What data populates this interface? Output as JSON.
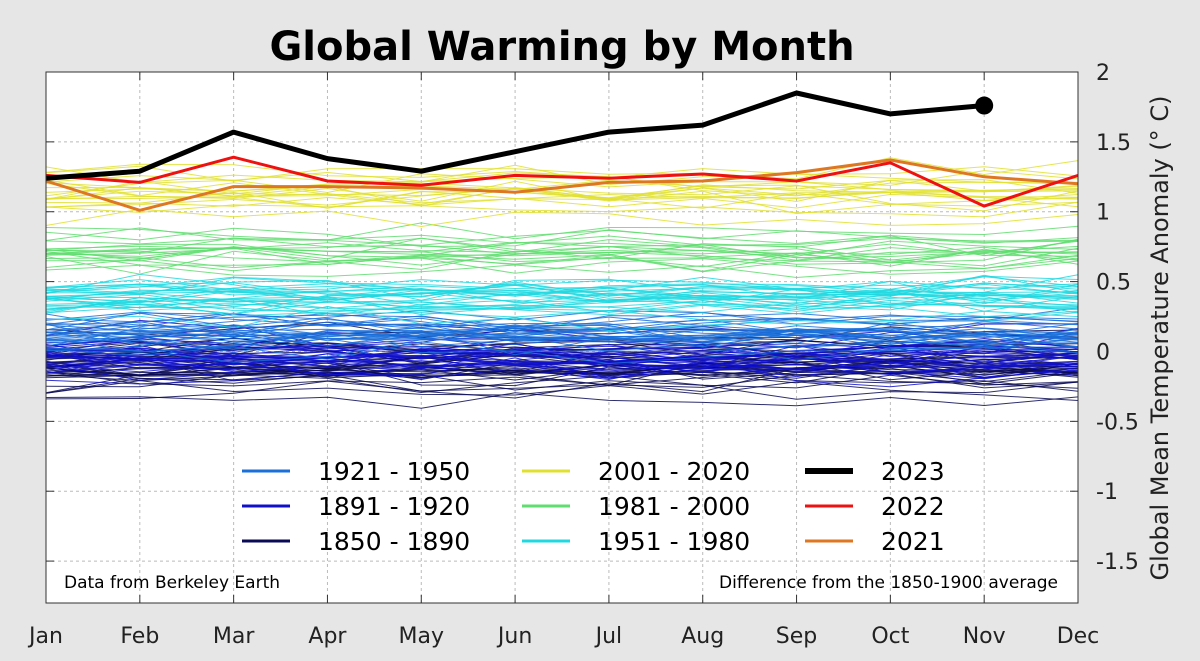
{
  "chart_data": {
    "type": "line",
    "title": "Global Warming by Month",
    "xlabel": "",
    "ylabel": "Global Mean Temperature Anomaly (° C)",
    "categories": [
      "Jan",
      "Feb",
      "Mar",
      "Apr",
      "May",
      "Jun",
      "Jul",
      "Aug",
      "Sep",
      "Oct",
      "Nov",
      "Dec"
    ],
    "ylim": [
      -1.8,
      2.0
    ],
    "yticks": [
      2,
      1.5,
      1,
      0.5,
      0,
      -0.5,
      -1,
      -1.5
    ],
    "ytick_labels": [
      "2",
      "1.5",
      "1",
      "0.5",
      "0",
      "-0.5",
      "-1",
      "-1.5"
    ],
    "grid": true,
    "y_axis_side": "right",
    "annotations": {
      "left": "Data from Berkeley Earth",
      "right": "Difference from the 1850-1900 average"
    },
    "legend": [
      {
        "label": "1921 - 1950",
        "color": "#1a6fd8",
        "width": 3
      },
      {
        "label": "1891 - 1920",
        "color": "#1010cc",
        "width": 3
      },
      {
        "label": "1850 - 1890",
        "color": "#0a0a55",
        "width": 3
      },
      {
        "label": "2001 - 2020",
        "color": "#e0e030",
        "width": 3
      },
      {
        "label": "1981 - 2000",
        "color": "#60dd70",
        "width": 3
      },
      {
        "label": "1951 - 1980",
        "color": "#20d8e0",
        "width": 3
      },
      {
        "label": "2023",
        "color": "#000000",
        "width": 6
      },
      {
        "label": "2022",
        "color": "#ee1111",
        "width": 3
      },
      {
        "label": "2021",
        "color": "#dd7722",
        "width": 3
      }
    ],
    "series": [
      {
        "name": "2023",
        "color": "#000000",
        "values": [
          1.24,
          1.29,
          1.57,
          1.38,
          1.29,
          1.43,
          1.57,
          1.62,
          1.85,
          1.7,
          1.76,
          null
        ],
        "end_marker": true
      },
      {
        "name": "2022",
        "color": "#ee1111",
        "values": [
          1.26,
          1.21,
          1.39,
          1.22,
          1.19,
          1.26,
          1.24,
          1.27,
          1.22,
          1.35,
          1.04,
          1.26
        ]
      },
      {
        "name": "2021",
        "color": "#dd7722",
        "values": [
          1.22,
          1.01,
          1.18,
          1.18,
          1.17,
          1.14,
          1.21,
          1.22,
          1.28,
          1.37,
          1.25,
          1.2
        ]
      }
    ],
    "background_periods": [
      {
        "name": "1850 - 1890",
        "color": "#0a0a55",
        "count": 41,
        "mean": -0.1,
        "spread": 0.16
      },
      {
        "name": "1891 - 1920",
        "color": "#1010cc",
        "count": 30,
        "mean": -0.05,
        "spread": 0.14
      },
      {
        "name": "1921 - 1950",
        "color": "#1a6fd8",
        "count": 30,
        "mean": 0.15,
        "spread": 0.12
      },
      {
        "name": "1951 - 1980",
        "color": "#20d8e0",
        "count": 30,
        "mean": 0.4,
        "spread": 0.1
      },
      {
        "name": "1981 - 2000",
        "color": "#60dd70",
        "count": 20,
        "mean": 0.72,
        "spread": 0.12
      },
      {
        "name": "2001 - 2020",
        "color": "#e0e030",
        "count": 20,
        "mean": 1.12,
        "spread": 0.16
      }
    ]
  }
}
